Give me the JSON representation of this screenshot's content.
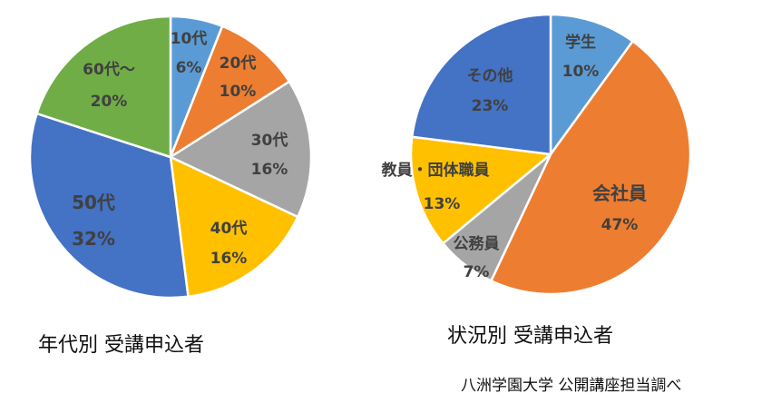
{
  "chart_data": [
    {
      "type": "pie",
      "title": "年代別 受講申込者",
      "categories": [
        "10代",
        "20代",
        "30代",
        "40代",
        "50代",
        "60代～"
      ],
      "values": [
        6,
        10,
        16,
        16,
        32,
        20
      ],
      "labels": [
        "6%",
        "10%",
        "16%",
        "16%",
        "32%",
        "20%"
      ],
      "colors": [
        "#5b9bd5",
        "#ed7d31",
        "#a5a5a5",
        "#ffc000",
        "#4472c4",
        "#70ad47"
      ],
      "start_angle": "12 o'clock, clockwise"
    },
    {
      "type": "pie",
      "title": "状況別 受講申込者",
      "categories": [
        "学生",
        "会社員",
        "公務員",
        "教員・団体職員",
        "その他"
      ],
      "values": [
        10,
        47,
        7,
        13,
        23
      ],
      "labels": [
        "10%",
        "47%",
        "7%",
        "13%",
        "23%"
      ],
      "colors": [
        "#5b9bd5",
        "#ed7d31",
        "#a5a5a5",
        "#ffc000",
        "#4472c4"
      ],
      "start_angle": "12 o'clock, clockwise"
    }
  ],
  "captions": {
    "left": "年代別 受講申込者",
    "right": "状況別 受講申込者",
    "source": "八洲学園大学 公開講座担当調べ"
  }
}
